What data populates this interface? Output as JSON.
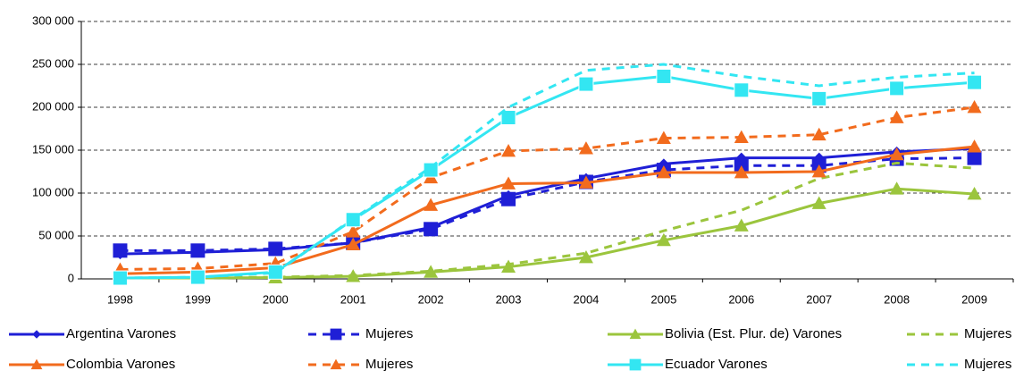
{
  "chart_data": {
    "type": "line",
    "categories": [
      "1998",
      "1999",
      "2000",
      "2001",
      "2002",
      "2003",
      "2004",
      "2005",
      "2006",
      "2007",
      "2008",
      "2009"
    ],
    "ylim": [
      0,
      300000
    ],
    "yticks": [
      0,
      {
        "value": 50000,
        "label": "50 000"
      },
      {
        "value": 100000,
        "label": "100 000"
      },
      {
        "value": 150000,
        "label": "150 000"
      },
      {
        "value": 200000,
        "label": "200 000"
      },
      {
        "value": 250000,
        "label": "250 000"
      },
      {
        "value": 300000,
        "label": "300 000"
      }
    ],
    "grid": true,
    "legend": "bottom",
    "series": [
      {
        "name": "Argentina Varones",
        "color": "#1f1fd6",
        "dash": false,
        "marker": "diamond",
        "values": [
          29000,
          31000,
          34000,
          42000,
          60000,
          97000,
          117000,
          134000,
          141000,
          141000,
          148000,
          152000
        ]
      },
      {
        "name": "Mujeres",
        "color": "#1f1fd6",
        "dash": true,
        "marker": "square",
        "values": [
          33000,
          33000,
          35000,
          42000,
          58000,
          93000,
          113000,
          127000,
          132000,
          132000,
          140000,
          141000
        ]
      },
      {
        "name": "Bolivia (Est. Plur. de)  Varones",
        "color": "#9bc53d",
        "dash": false,
        "marker": "triangle",
        "values": [
          1000,
          1000,
          1500,
          3000,
          8000,
          14000,
          25000,
          45000,
          62000,
          88000,
          105000,
          99000
        ]
      },
      {
        "name": "Mujeres",
        "color": "#9bc53d",
        "dash": true,
        "marker": "none",
        "values": [
          1000,
          1000,
          2000,
          4000,
          9000,
          17000,
          30000,
          56000,
          80000,
          117000,
          135000,
          129000
        ]
      },
      {
        "name": "Colombia Varones",
        "color": "#f26b1d",
        "dash": false,
        "marker": "triangle",
        "values": [
          6000,
          8000,
          13000,
          40000,
          86000,
          111000,
          112000,
          124000,
          124000,
          125000,
          145000,
          154000
        ]
      },
      {
        "name": "Mujeres",
        "color": "#f26b1d",
        "dash": true,
        "marker": "triangle",
        "values": [
          11000,
          12000,
          18000,
          55000,
          118000,
          149000,
          152000,
          164000,
          165000,
          168000,
          188000,
          200000
        ]
      },
      {
        "name": "Ecuador Varones",
        "color": "#33e6f2",
        "dash": false,
        "marker": "square",
        "values": [
          1000,
          2000,
          8000,
          69000,
          127000,
          188000,
          227000,
          236000,
          220000,
          210000,
          222000,
          229000
        ]
      },
      {
        "name": "Mujeres",
        "color": "#33e6f2",
        "dash": true,
        "marker": "none",
        "values": [
          1000,
          2000,
          7000,
          70000,
          130000,
          200000,
          243000,
          250000,
          236000,
          225000,
          235000,
          240000
        ]
      }
    ]
  }
}
